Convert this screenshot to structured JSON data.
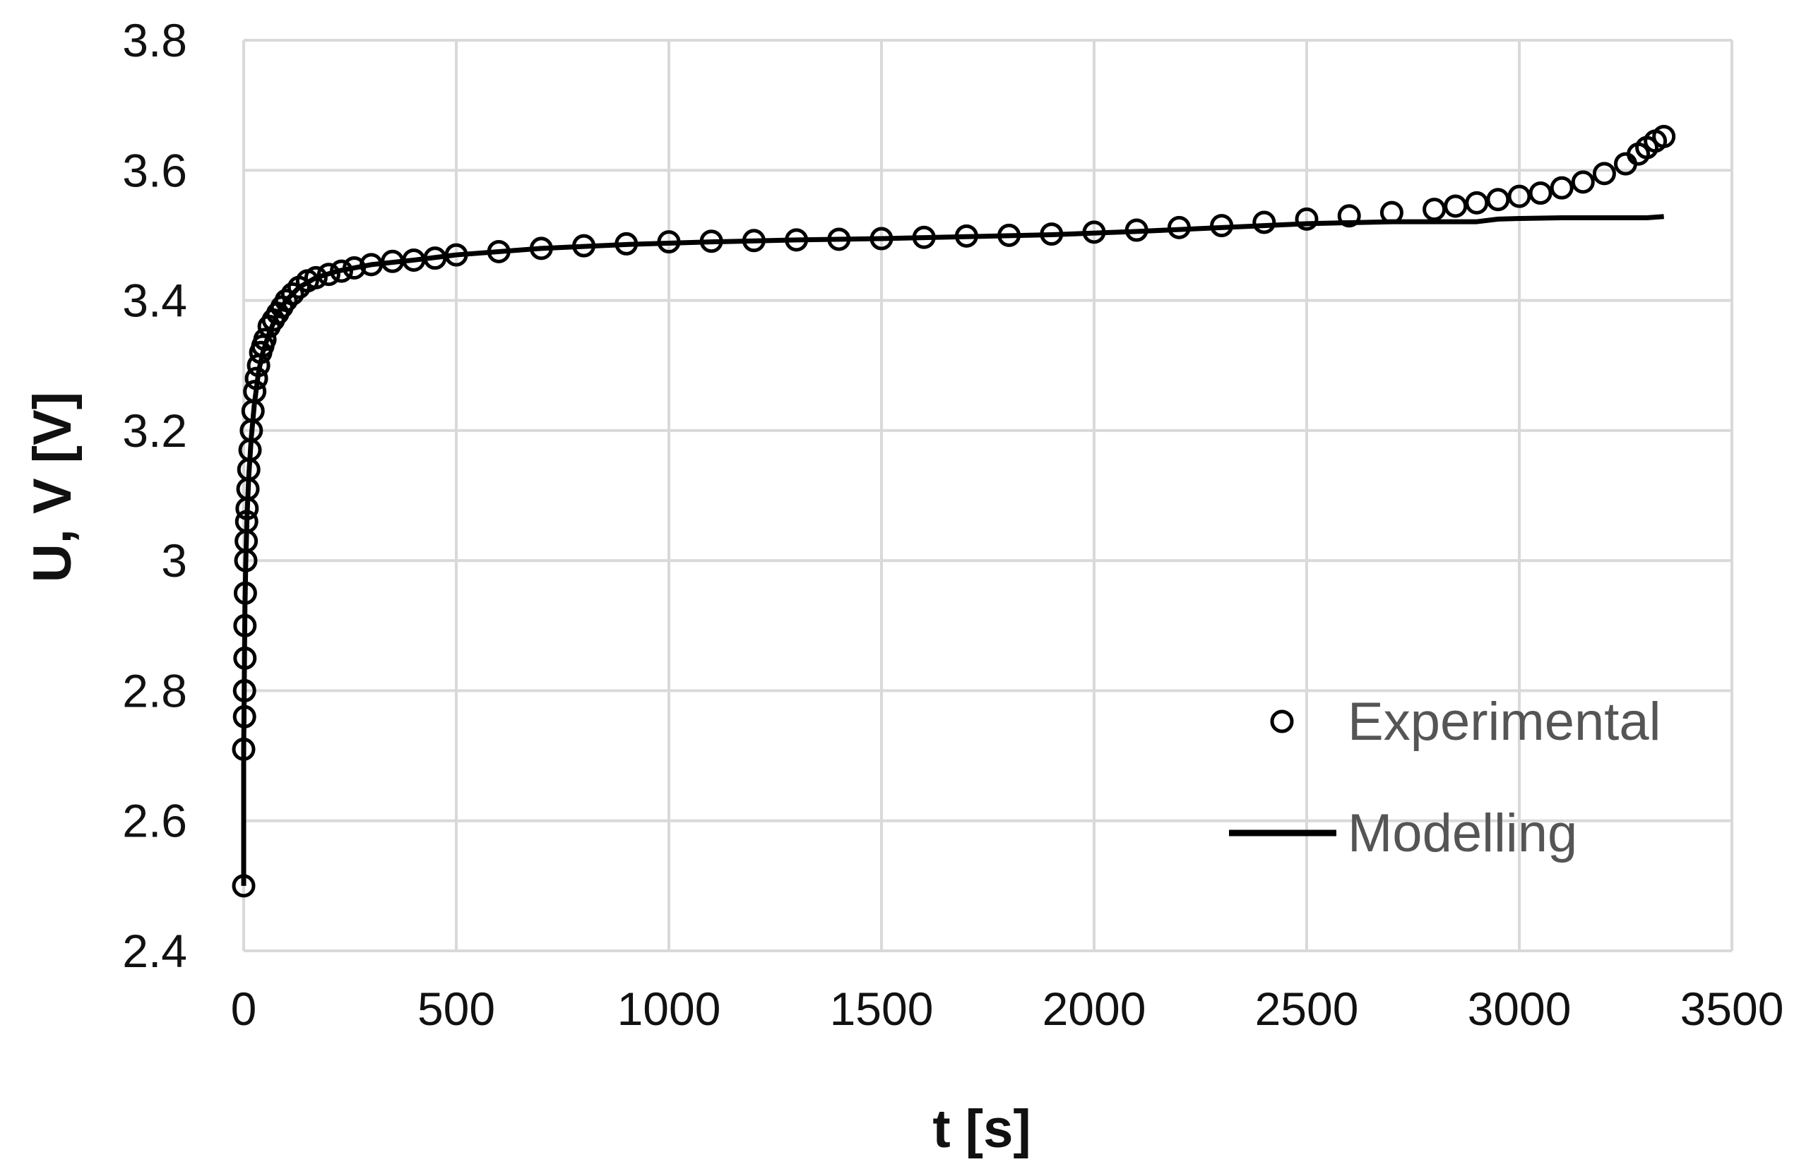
{
  "chart_data": {
    "type": "scatter",
    "xlabel": "t [s]",
    "ylabel": "U, V [V]",
    "xlim": [
      0,
      3500
    ],
    "ylim": [
      2.4,
      3.8
    ],
    "x_ticks": [
      0,
      500,
      1000,
      1500,
      2000,
      2500,
      3000,
      3500
    ],
    "x_tick_labels": [
      "0",
      "500",
      "1000",
      "1500",
      "2000",
      "2500",
      "3000",
      "3500"
    ],
    "y_ticks": [
      2.4,
      2.6,
      2.8,
      3.0,
      3.2,
      3.4,
      3.6,
      3.8
    ],
    "y_tick_labels": [
      "2.4",
      "2.6",
      "2.8",
      "3",
      "3.2",
      "3.4",
      "3.6",
      "3.8"
    ],
    "grid": true,
    "legend_position": "lower-right",
    "colors": {
      "series": "#000000",
      "grid": "#d9d9d9",
      "legend_text": "#555555"
    },
    "series": [
      {
        "name": "Experimental",
        "style": "markers",
        "marker": "open-circle",
        "x": [
          0,
          0,
          2,
          2,
          3,
          3,
          4,
          5,
          6,
          7,
          8,
          10,
          12,
          15,
          18,
          22,
          26,
          30,
          35,
          40,
          45,
          50,
          60,
          70,
          80,
          90,
          100,
          115,
          130,
          150,
          170,
          200,
          230,
          260,
          300,
          350,
          400,
          450,
          500,
          600,
          700,
          800,
          900,
          1000,
          1100,
          1200,
          1300,
          1400,
          1500,
          1600,
          1700,
          1800,
          1900,
          2000,
          2100,
          2200,
          2300,
          2400,
          2500,
          2600,
          2700,
          2800,
          2850,
          2900,
          2950,
          3000,
          3050,
          3100,
          3150,
          3200,
          3250,
          3280,
          3300,
          3320,
          3340
        ],
        "y": [
          2.5,
          2.71,
          2.76,
          2.8,
          2.85,
          2.9,
          2.95,
          3.0,
          3.03,
          3.06,
          3.08,
          3.11,
          3.14,
          3.17,
          3.2,
          3.23,
          3.26,
          3.28,
          3.3,
          3.32,
          3.33,
          3.34,
          3.36,
          3.37,
          3.38,
          3.39,
          3.4,
          3.41,
          3.42,
          3.43,
          3.435,
          3.44,
          3.445,
          3.45,
          3.455,
          3.46,
          3.462,
          3.465,
          3.47,
          3.475,
          3.48,
          3.484,
          3.487,
          3.49,
          3.491,
          3.492,
          3.493,
          3.494,
          3.495,
          3.497,
          3.499,
          3.5,
          3.502,
          3.505,
          3.508,
          3.512,
          3.515,
          3.52,
          3.525,
          3.53,
          3.535,
          3.54,
          3.545,
          3.55,
          3.555,
          3.56,
          3.565,
          3.573,
          3.582,
          3.595,
          3.61,
          3.625,
          3.635,
          3.645,
          3.652
        ]
      },
      {
        "name": "Modelling",
        "style": "line",
        "x": [
          0,
          0,
          1,
          2,
          3,
          5,
          8,
          12,
          18,
          25,
          35,
          45,
          60,
          80,
          100,
          130,
          170,
          220,
          300,
          400,
          500,
          700,
          900,
          1100,
          1300,
          1500,
          1700,
          1900,
          2100,
          2300,
          2500,
          2700,
          2900,
          2950,
          3000,
          3100,
          3200,
          3300,
          3340
        ],
        "y": [
          2.5,
          2.71,
          2.78,
          2.86,
          2.93,
          3.0,
          3.07,
          3.13,
          3.19,
          3.24,
          3.29,
          3.32,
          3.35,
          3.38,
          3.4,
          3.42,
          3.435,
          3.445,
          3.455,
          3.462,
          3.47,
          3.48,
          3.486,
          3.49,
          3.493,
          3.495,
          3.498,
          3.501,
          3.506,
          3.512,
          3.518,
          3.521,
          3.521,
          3.525,
          3.526,
          3.527,
          3.527,
          3.527,
          3.529
        ]
      }
    ]
  }
}
